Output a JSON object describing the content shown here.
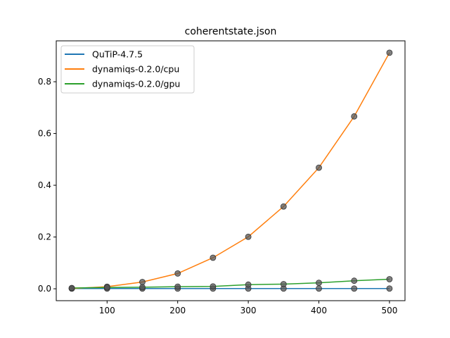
{
  "chart_data": {
    "type": "line",
    "title": "coherentstate.json",
    "xlabel": "",
    "ylabel": "",
    "xlim": [
      28,
      522
    ],
    "ylim": [
      -0.046,
      0.958
    ],
    "xticks": [
      100,
      200,
      300,
      400,
      500
    ],
    "xtick_labels": [
      "100",
      "200",
      "300",
      "400",
      "500"
    ],
    "yticks": [
      0.0,
      0.2,
      0.4,
      0.6,
      0.8
    ],
    "ytick_labels": [
      "0.0",
      "0.2",
      "0.4",
      "0.6",
      "0.8"
    ],
    "grid": false,
    "legend_position": "upper-left",
    "marker_color": "#555555",
    "x": [
      50,
      100,
      150,
      200,
      250,
      300,
      350,
      400,
      450,
      500
    ],
    "series": [
      {
        "name": "QuTiP-4.7.5",
        "color": "#1f77b4",
        "values": [
          0.001,
          0.001,
          0.001,
          0.001,
          0.001,
          0.001,
          0.001,
          0.001,
          0.001,
          0.001
        ]
      },
      {
        "name": "dynamiqs-0.2.0/cpu",
        "color": "#ff7f0e",
        "values": [
          0.001,
          0.008,
          0.026,
          0.059,
          0.12,
          0.201,
          0.318,
          0.468,
          0.666,
          0.912
        ]
      },
      {
        "name": "dynamiqs-0.2.0/gpu",
        "color": "#2ca02c",
        "values": [
          0.003,
          0.005,
          0.006,
          0.008,
          0.009,
          0.016,
          0.018,
          0.023,
          0.031,
          0.037
        ]
      }
    ]
  }
}
